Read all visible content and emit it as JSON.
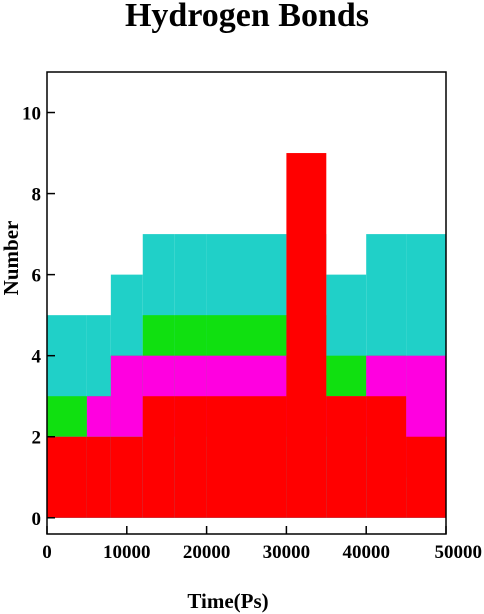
{
  "chart_data": {
    "type": "bar",
    "title": "Hydrogen Bonds",
    "xlabel": "Time(Ps)",
    "ylabel": "Number",
    "xlim": [
      0,
      50000
    ],
    "ylim": [
      -0.4,
      11
    ],
    "xticks": [
      0,
      10000,
      20000,
      30000,
      40000,
      50000
    ],
    "yticks": [
      0,
      2,
      4,
      6,
      8,
      10
    ],
    "xtick_labels": [
      "0",
      "10000",
      "20000",
      "30000",
      "40000",
      "50000"
    ],
    "ytick_labels": [
      "0",
      "2",
      "4",
      "6",
      "8",
      "10"
    ],
    "grid": false,
    "legend": "none",
    "series": [
      {
        "color": "#20d0c8",
        "x": [
          0,
          5000,
          8000,
          12000,
          16000,
          20000,
          25000,
          30000,
          35000,
          40000,
          45000,
          50000
        ],
        "values": [
          5,
          5,
          6,
          7,
          7,
          7,
          7,
          7,
          6,
          7,
          7,
          7
        ]
      },
      {
        "color": "#10e010",
        "x": [
          0,
          5000,
          8000,
          12000,
          16000,
          20000,
          25000,
          30000,
          35000,
          40000,
          45000,
          50000
        ],
        "values": [
          3,
          3,
          4,
          5,
          5,
          5,
          5,
          5,
          4,
          4,
          3,
          3
        ]
      },
      {
        "color": "#ff00e0",
        "x": [
          0,
          5000,
          8000,
          12000,
          16000,
          20000,
          25000,
          30000,
          35000,
          40000,
          45000,
          50000
        ],
        "values": [
          2,
          3,
          4,
          4,
          4,
          4,
          4,
          3,
          3,
          4,
          4,
          3
        ]
      },
      {
        "color": "#00ffff",
        "x": [
          0,
          5000,
          8000,
          12000,
          16000,
          20000,
          25000,
          30000,
          35000,
          40000,
          45000,
          50000
        ],
        "values": [
          2,
          2,
          2,
          2,
          2,
          2,
          2,
          2,
          2,
          2,
          1,
          1
        ]
      },
      {
        "color": "#ff0000",
        "x": [
          0,
          5000,
          8000,
          12000,
          16000,
          20000,
          25000,
          30000,
          35000,
          40000,
          45000,
          50000
        ],
        "values": [
          2,
          2,
          2,
          3,
          3,
          3,
          3,
          9,
          3,
          3,
          2,
          2
        ]
      }
    ]
  }
}
